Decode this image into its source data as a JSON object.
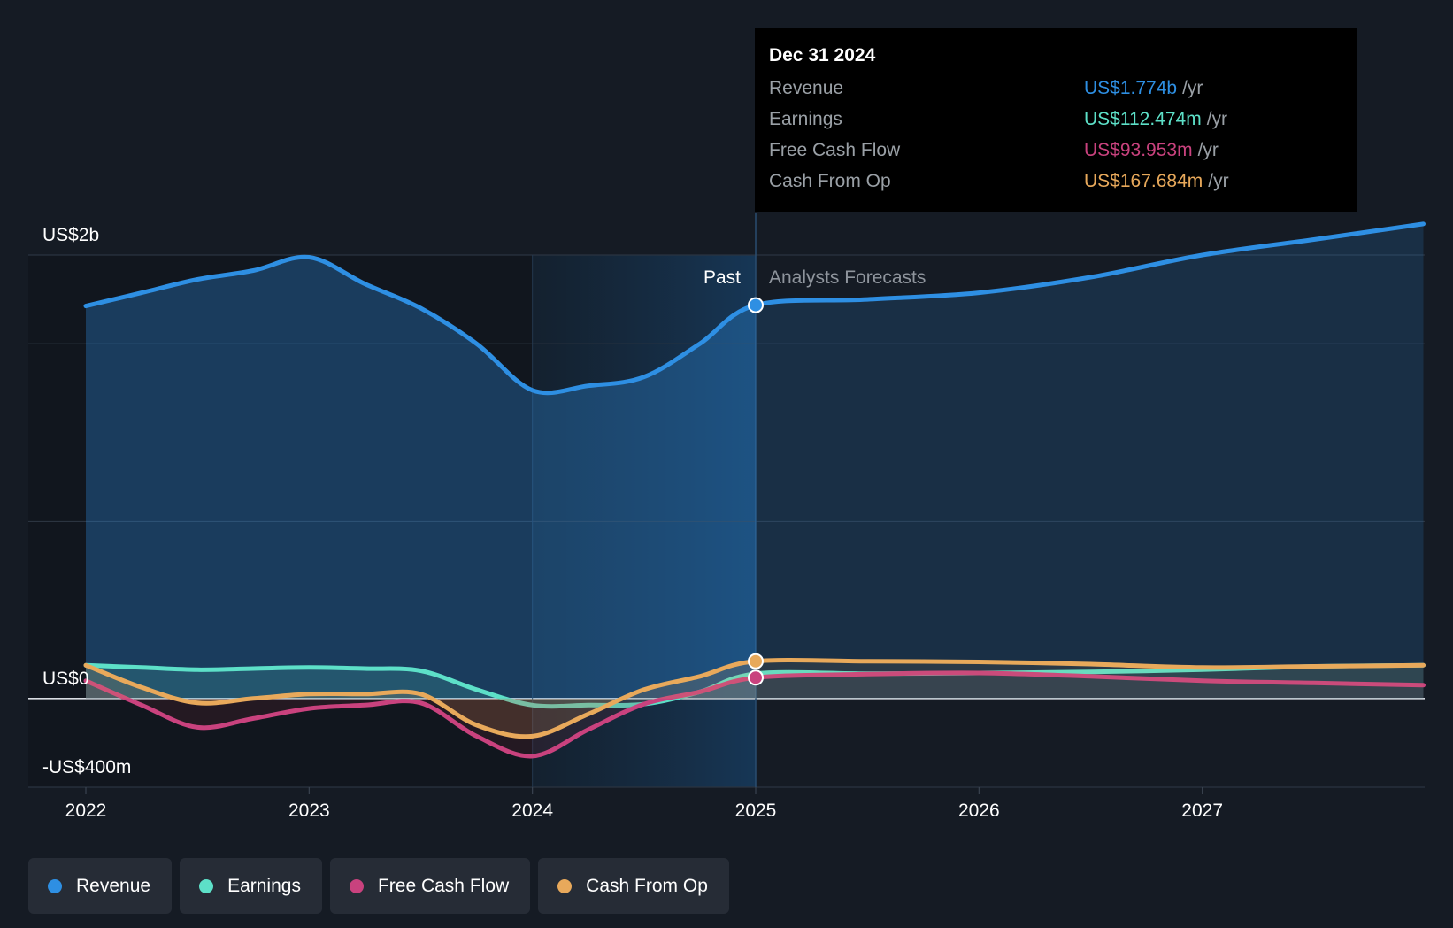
{
  "chart_data": {
    "type": "line",
    "x": [
      2022.0,
      2022.25,
      2022.5,
      2022.75,
      2023.0,
      2023.25,
      2023.5,
      2023.75,
      2024.0,
      2024.25,
      2024.5,
      2024.75,
      2025.0,
      2025.5,
      2026.0,
      2026.5,
      2027.0,
      2027.5,
      2027.99
    ],
    "series": [
      {
        "name": "Revenue",
        "color": "#2e8fe3",
        "values": [
          1770,
          1830,
          1890,
          1930,
          1990,
          1870,
          1760,
          1600,
          1390,
          1410,
          1450,
          1600,
          1774,
          1800,
          1830,
          1900,
          2000,
          2070,
          2140
        ]
      },
      {
        "name": "Earnings",
        "color": "#5de0c8",
        "values": [
          150,
          140,
          130,
          135,
          140,
          135,
          125,
          40,
          -30,
          -30,
          -25,
          30,
          112,
          112,
          115,
          120,
          130,
          145,
          150
        ]
      },
      {
        "name": "Free Cash Flow",
        "color": "#c9427e",
        "values": [
          80,
          -30,
          -130,
          -90,
          -45,
          -30,
          -20,
          -170,
          -260,
          -140,
          -25,
          30,
          94,
          110,
          115,
          100,
          80,
          70,
          60
        ]
      },
      {
        "name": "Cash From Op",
        "color": "#e8a95b",
        "values": [
          150,
          50,
          -20,
          0,
          20,
          20,
          20,
          -120,
          -170,
          -70,
          40,
          100,
          168,
          168,
          165,
          155,
          140,
          145,
          150
        ]
      }
    ],
    "forecast_start": 2025.0,
    "highlight_start": 2024.0,
    "ylim": [
      -400,
      2000
    ],
    "y_tick_labels": [
      {
        "value": 2000,
        "label": "US$2b"
      },
      {
        "value": 0,
        "label": "US$0"
      },
      {
        "value": -400,
        "label": "-US$400m"
      }
    ],
    "gridlines": [
      2000,
      1600,
      800,
      0,
      -400
    ],
    "x_ticks": [
      2022,
      2023,
      2024,
      2025,
      2026,
      2027
    ],
    "x_tick_labels": [
      "2022",
      "2023",
      "2024",
      "2025",
      "2026",
      "2027"
    ],
    "past_label": "Past",
    "forecast_label": "Analysts Forecasts",
    "grid": true,
    "legend_position": "bottom-left"
  },
  "tooltip": {
    "date": "Dec 31 2024",
    "rows": [
      {
        "label": "Revenue",
        "value": "US$1.774b",
        "unit": "/yr",
        "color": "#2e8fe3"
      },
      {
        "label": "Earnings",
        "value": "US$112.474m",
        "unit": "/yr",
        "color": "#5de0c8"
      },
      {
        "label": "Free Cash Flow",
        "value": "US$93.953m",
        "unit": "/yr",
        "color": "#c9427e"
      },
      {
        "label": "Cash From Op",
        "value": "US$167.684m",
        "unit": "/yr",
        "color": "#e8a95b"
      }
    ]
  },
  "legend": [
    {
      "label": "Revenue",
      "color": "#2e8fe3"
    },
    {
      "label": "Earnings",
      "color": "#5de0c8"
    },
    {
      "label": "Free Cash Flow",
      "color": "#c9427e"
    },
    {
      "label": "Cash From Op",
      "color": "#e8a95b"
    }
  ]
}
